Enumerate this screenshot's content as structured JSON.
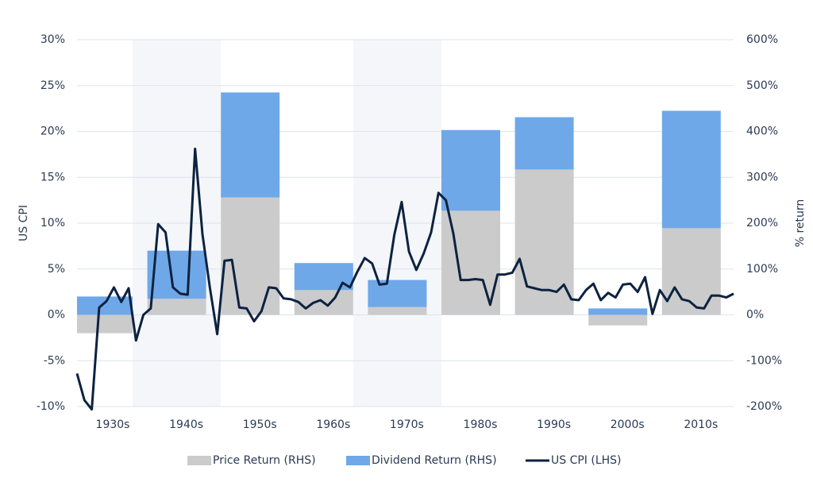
{
  "chart_data": {
    "type": "bar_line_combo",
    "y_axis_label": "US CPI",
    "y2_axis_label": "% return",
    "categories": [
      "1930s",
      "1940s",
      "1950s",
      "1960s",
      "1970s",
      "1980s",
      "1990s",
      "2000s",
      "2010s"
    ],
    "series": [
      {
        "name": "Price Return (RHS)",
        "type": "bar",
        "axis": "y2",
        "color": "#cbcbcb",
        "values": [
          -40,
          35,
          256,
          54,
          17,
          227,
          317,
          -23,
          189
        ]
      },
      {
        "name": "Dividend Return (RHS)",
        "type": "bar",
        "axis": "y2",
        "color": "#6fa8e8",
        "values": [
          40,
          105,
          229,
          59,
          59,
          176,
          114,
          14,
          256
        ]
      },
      {
        "name": "US CPI (LHS)",
        "type": "line",
        "axis": "y",
        "color": "#0d2240",
        "x": [
          1930,
          1931,
          1932,
          1933,
          1934,
          1935,
          1936,
          1937,
          1938,
          1939,
          1940,
          1941,
          1942,
          1943,
          1944,
          1945,
          1946,
          1947,
          1948,
          1949,
          1950,
          1951,
          1952,
          1953,
          1954,
          1955,
          1956,
          1957,
          1958,
          1959,
          1960,
          1961,
          1962,
          1963,
          1964,
          1965,
          1966,
          1967,
          1968,
          1969,
          1970,
          1971,
          1972,
          1973,
          1974,
          1975,
          1976,
          1977,
          1978,
          1979,
          1980,
          1981,
          1982,
          1983,
          1984,
          1985,
          1986,
          1987,
          1988,
          1989,
          1990,
          1991,
          1992,
          1993,
          1994,
          1995,
          1996,
          1997,
          1998,
          1999,
          2000,
          2001,
          2002,
          2003,
          2004,
          2005,
          2006,
          2007,
          2008,
          2009,
          2010,
          2011,
          2012,
          2013,
          2014,
          2015,
          2016,
          2017,
          2018,
          2019
        ],
        "values": [
          -6.4,
          -9.3,
          -10.3,
          0.8,
          1.5,
          3.0,
          1.4,
          2.9,
          -2.8,
          0,
          0.7,
          9.9,
          9.0,
          3.0,
          2.3,
          2.2,
          18.1,
          8.8,
          3.0,
          -2.1,
          5.9,
          6.0,
          0.8,
          0.7,
          -0.7,
          0.4,
          3.0,
          2.9,
          1.8,
          1.7,
          1.4,
          0.7,
          1.3,
          1.6,
          1.0,
          1.9,
          3.5,
          3.0,
          4.7,
          6.2,
          5.6,
          3.3,
          3.4,
          8.7,
          12.3,
          6.9,
          4.9,
          6.7,
          9.0,
          13.3,
          12.5,
          8.9,
          3.8,
          3.8,
          3.9,
          3.8,
          1.1,
          4.4,
          4.4,
          4.6,
          6.1,
          3.1,
          2.9,
          2.7,
          2.7,
          2.5,
          3.3,
          1.7,
          1.6,
          2.7,
          3.4,
          1.6,
          2.4,
          1.9,
          3.3,
          3.4,
          2.5,
          4.1,
          0.1,
          2.7,
          1.5,
          3.0,
          1.7,
          1.5,
          0.8,
          0.7,
          2.1,
          2.1,
          1.9,
          2.3
        ]
      }
    ],
    "xlim": [
      1930,
      2019
    ],
    "ylim": [
      -10,
      30
    ],
    "yticks": [
      {
        "value": -10,
        "label": "-10%"
      },
      {
        "value": -5,
        "label": "-5%"
      },
      {
        "value": 0,
        "label": "0%"
      },
      {
        "value": 5,
        "label": "5%"
      },
      {
        "value": 10,
        "label": "10%"
      },
      {
        "value": 15,
        "label": "15%"
      },
      {
        "value": 20,
        "label": "20%"
      },
      {
        "value": 25,
        "label": "25%"
      },
      {
        "value": 30,
        "label": "30%"
      }
    ],
    "y2lim": [
      -200,
      600
    ],
    "y2ticks": [
      {
        "value": -200,
        "label": "-200%"
      },
      {
        "value": -100,
        "label": "-100%"
      },
      {
        "value": 0,
        "label": "0%"
      },
      {
        "value": 100,
        "label": "100%"
      },
      {
        "value": 200,
        "label": "200%"
      },
      {
        "value": 300,
        "label": "300%"
      },
      {
        "value": 400,
        "label": "400%"
      },
      {
        "value": 500,
        "label": "500%"
      },
      {
        "value": 600,
        "label": "600%"
      }
    ],
    "grid": true,
    "legend": "bottom"
  }
}
